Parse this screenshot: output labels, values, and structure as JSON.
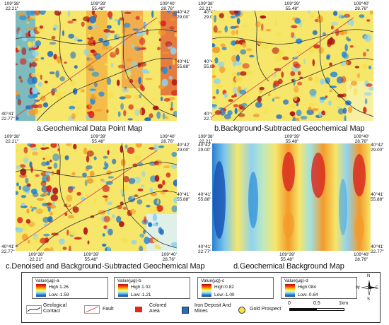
{
  "maps": [
    {
      "id": "a",
      "caption": "a.Geochemical Data Point Map"
    },
    {
      "id": "b",
      "caption": "b.Background-Subtracted Geochemical Map"
    },
    {
      "id": "c",
      "caption": "c.Denoised and Background-Subtracted Geochemical Map"
    },
    {
      "id": "d",
      "caption": "d.Geochemical Background Map"
    }
  ],
  "coords": {
    "lon_top": [
      {
        "deg": "109°38'",
        "min": "22.21\""
      },
      {
        "deg": "109°39'",
        "min": "55.48\""
      },
      {
        "deg": "109°40'",
        "min": "28.76\""
      }
    ],
    "lat": [
      {
        "deg": "40°42'",
        "min": "29.00\""
      },
      {
        "deg": "40°41'",
        "min": "55.88\""
      },
      {
        "deg": "40°41'",
        "min": "22.77\""
      }
    ]
  },
  "legend": {
    "values": [
      {
        "title": "Value(μg)-a",
        "high": "High:1.26",
        "low": "Low:-1.59"
      },
      {
        "title": "Value(μg)-b",
        "high": "High:1.02",
        "low": "Low:-1.21"
      },
      {
        "title": "Value(μg)-c",
        "high": "High:0.82",
        "low": "Low:-1.00"
      },
      {
        "title": "Value(μg)-d",
        "high": "High:084",
        "low": "Low:-0.64"
      }
    ],
    "items": {
      "contact": "Geological Contact",
      "fault": "Fault",
      "colored": "Colored Area",
      "iron": "Iron Deposit And Mines",
      "gold": "Gold Prospect"
    },
    "scale": {
      "s0": "0",
      "s1": "0.5",
      "s2": "1km"
    },
    "compass": {
      "n": "N",
      "s": "S",
      "e": "E",
      "w": "W"
    }
  },
  "colors": {
    "red": "#d7261e",
    "blue": "#1f6fc6",
    "yellow": "#f7e04a",
    "cyan": "#8fd3f0",
    "orange": "#f39a2a"
  }
}
